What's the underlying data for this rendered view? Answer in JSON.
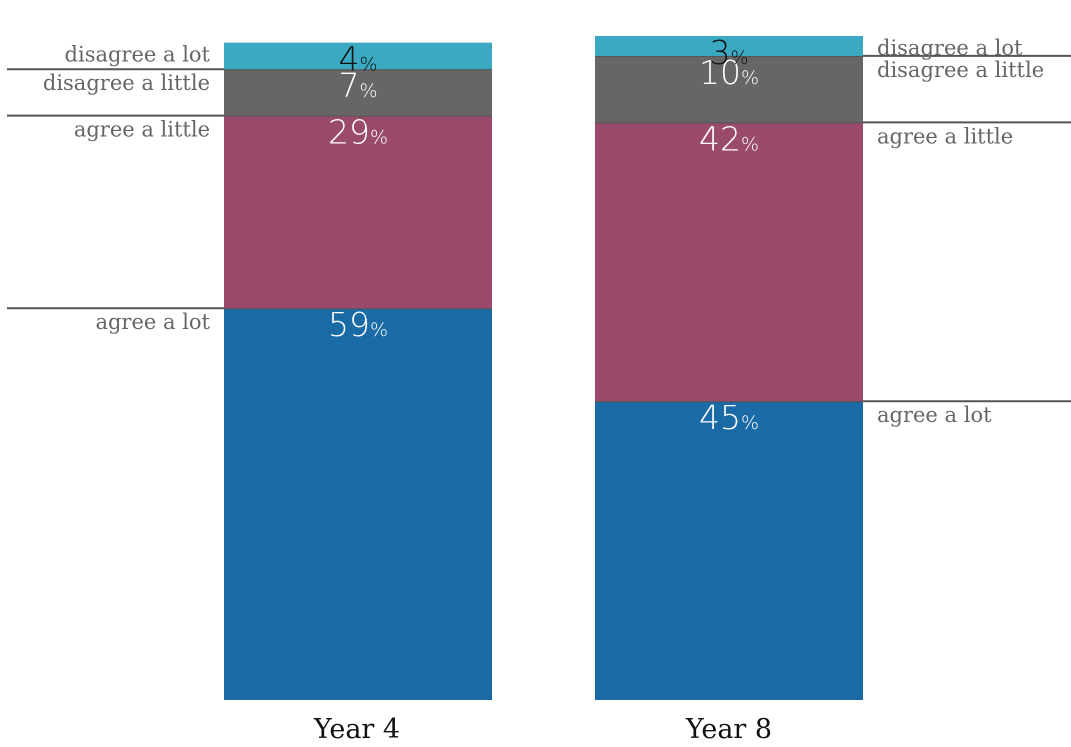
{
  "chart_data": {
    "type": "bar",
    "stacked": true,
    "value_suffix": "%",
    "categories": [
      "Year 4",
      "Year 8"
    ],
    "series": [
      {
        "name": "agree a lot",
        "color": "#1a6aa6",
        "values": [
          59,
          45
        ]
      },
      {
        "name": "agree a little",
        "color": "#9a4a6a",
        "values": [
          29,
          42
        ]
      },
      {
        "name": "disagree a little",
        "color": "#666666",
        "values": [
          7,
          10
        ]
      },
      {
        "name": "disagree a lot",
        "color": "#3aa9c1",
        "values": [
          4,
          3
        ]
      }
    ],
    "label_colors": [
      "#ffffff",
      "#ffffff",
      "#ffffff",
      "#111111"
    ],
    "legend_placement": [
      "left",
      "right"
    ],
    "ylim": [
      0,
      100
    ]
  }
}
